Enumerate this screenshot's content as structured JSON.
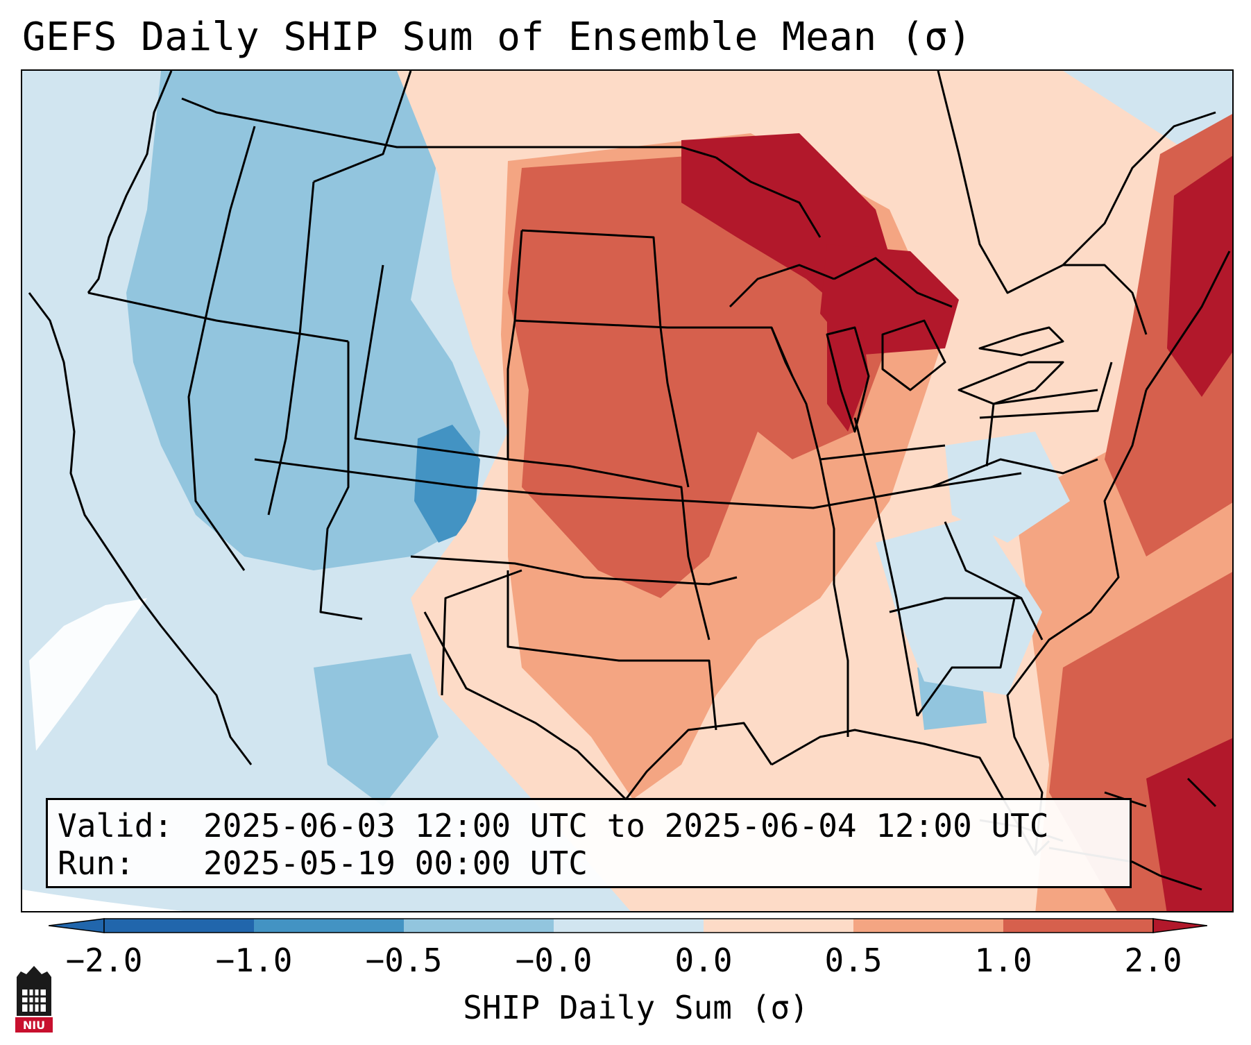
{
  "title": "GEFS Daily SHIP Sum of Ensemble Mean (σ)",
  "info_box": {
    "valid_label": "Valid:",
    "valid_value": "2025-06-03 12:00 UTC to 2025-06-04 12:00 UTC",
    "run_label": "Run:",
    "run_value": "2025-05-19 00:00 UTC"
  },
  "colorbar": {
    "label": "SHIP Daily Sum (σ)",
    "ticks": [
      "−2.0",
      "−1.0",
      "−0.5",
      "−0.0",
      "0.0",
      "0.5",
      "1.0",
      "2.0"
    ],
    "colors": [
      "#2166ac",
      "#4393c3",
      "#92c5de",
      "#d1e5f0",
      "#ffffff",
      "#fddbc7",
      "#f4a582",
      "#d6604d",
      "#b2182b"
    ]
  },
  "logo": {
    "icon": "niu-university-logo",
    "text": "NIU"
  }
}
